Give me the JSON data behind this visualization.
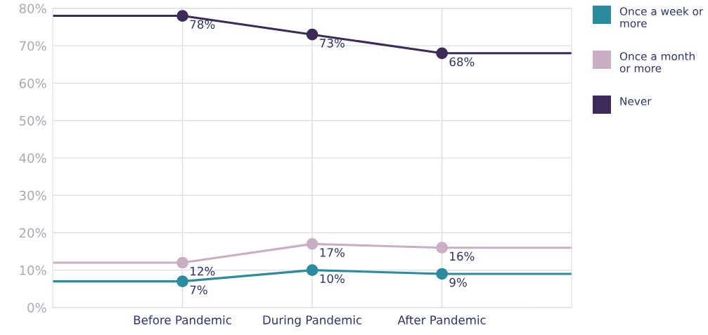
{
  "chart_data": {
    "type": "line",
    "categories": [
      null,
      "Before Pandemic",
      "During Pandemic",
      "After Pandemic",
      null
    ],
    "ylim": [
      0,
      80
    ],
    "yticks": [
      {
        "value": 0,
        "label": "0%"
      },
      {
        "value": 10,
        "label": "10%"
      },
      {
        "value": 20,
        "label": "20%"
      },
      {
        "value": 30,
        "label": "30%"
      },
      {
        "value": 40,
        "label": "40%"
      },
      {
        "value": 50,
        "label": "50%"
      },
      {
        "value": 60,
        "label": "60%"
      },
      {
        "value": 70,
        "label": "70%"
      },
      {
        "value": 80,
        "label": "80%"
      }
    ],
    "series": [
      {
        "name": "Once a week or more",
        "color": "#2a8c9c",
        "values": [
          7,
          7,
          10,
          9,
          9
        ],
        "value_labels": [
          null,
          "7%",
          "10%",
          "9%",
          null
        ]
      },
      {
        "name": "Once a month or more",
        "color": "#c9aec4",
        "values": [
          12,
          12,
          17,
          16,
          16
        ],
        "value_labels": [
          null,
          "12%",
          "17%",
          "16%",
          null
        ]
      },
      {
        "name": "Never",
        "color": "#3b2a5a",
        "values": [
          78,
          78,
          73,
          68,
          68
        ],
        "value_labels": [
          null,
          "78%",
          "73%",
          "68%",
          null
        ]
      }
    ],
    "grid": true,
    "legend": "top right",
    "marker": "circle",
    "line_style": "solid"
  }
}
